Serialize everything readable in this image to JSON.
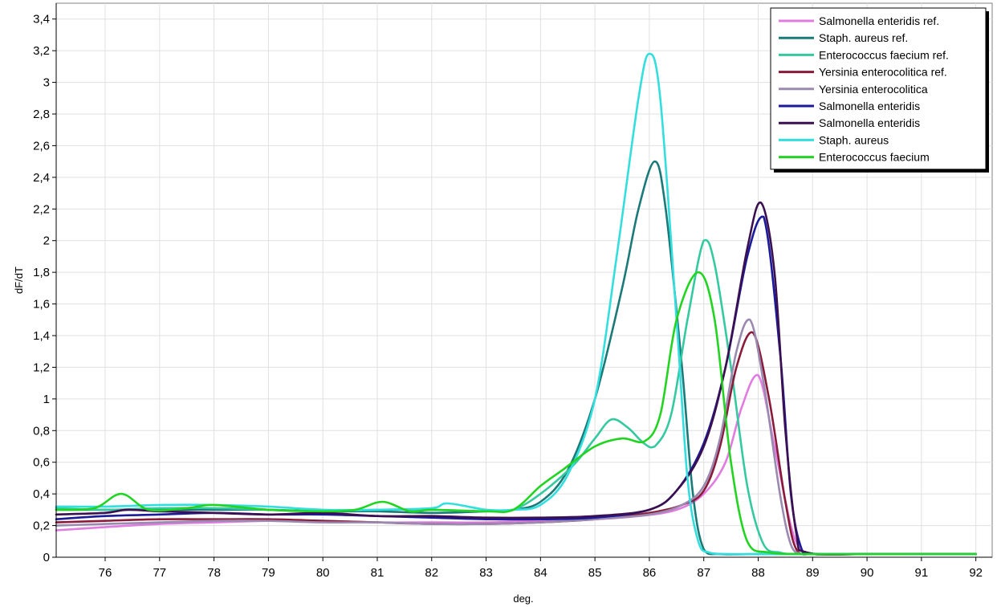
{
  "chart_data": {
    "type": "line",
    "title": "",
    "xlabel": "deg.",
    "ylabel": "dF/dT",
    "xlim": [
      75.1,
      92.3
    ],
    "ylim": [
      0,
      3.5
    ],
    "x_ticks": [
      76,
      77,
      78,
      79,
      80,
      81,
      82,
      83,
      84,
      85,
      86,
      87,
      88,
      89,
      90,
      91,
      92
    ],
    "x_tick_labels": [
      "76",
      "77",
      "78",
      "79",
      "80",
      "81",
      "82",
      "83",
      "84",
      "85",
      "86",
      "87",
      "88",
      "89",
      "90",
      "91",
      "92"
    ],
    "y_ticks": [
      0,
      0.2,
      0.4,
      0.6,
      0.8,
      1,
      1.2,
      1.4,
      1.6,
      1.8,
      2,
      2.2,
      2.4,
      2.6,
      2.8,
      3,
      3.2,
      3.4
    ],
    "y_tick_labels": [
      "0",
      "0,2",
      "0,4",
      "0,6",
      "0,8",
      "1",
      "1,2",
      "1,4",
      "1,6",
      "1,8",
      "2",
      "2,2",
      "2,4",
      "2,6",
      "2,8",
      "3",
      "3,2",
      "3,4"
    ],
    "grid": true,
    "legend_position": "top-right",
    "series": [
      {
        "name": "Salmonella enteridis ref.",
        "color": "#e07be0",
        "x": [
          75.1,
          76,
          77,
          78,
          79,
          80,
          81,
          82,
          83,
          84,
          85,
          85.8,
          86.5,
          87,
          87.4,
          87.7,
          88,
          88.3,
          88.6,
          88.8,
          89,
          90,
          91,
          92
        ],
        "y": [
          0.17,
          0.19,
          0.21,
          0.22,
          0.23,
          0.23,
          0.22,
          0.22,
          0.22,
          0.23,
          0.24,
          0.26,
          0.3,
          0.4,
          0.6,
          0.95,
          1.15,
          0.7,
          0.2,
          0.04,
          0.02,
          0.02,
          0.02,
          0.02
        ]
      },
      {
        "name": "Staph. aureus ref.",
        "color": "#1a7a78",
        "x": [
          75.1,
          76,
          77,
          78,
          79,
          80,
          81,
          82,
          83,
          83.5,
          84,
          84.5,
          85,
          85.5,
          85.8,
          86.1,
          86.3,
          86.6,
          86.8,
          87,
          87.3,
          88,
          89,
          90,
          91,
          92
        ],
        "y": [
          0.3,
          0.3,
          0.3,
          0.3,
          0.3,
          0.29,
          0.29,
          0.28,
          0.29,
          0.3,
          0.35,
          0.55,
          1.0,
          1.7,
          2.2,
          2.5,
          2.2,
          1.2,
          0.4,
          0.05,
          0.02,
          0.02,
          0.02,
          0.02,
          0.02,
          0.02
        ]
      },
      {
        "name": "Enterococcus faecium ref.",
        "color": "#35c9a0",
        "x": [
          75.1,
          76,
          77,
          78,
          79,
          80,
          81,
          82,
          83,
          83.5,
          84,
          84.6,
          85,
          85.3,
          85.6,
          85.9,
          86.1,
          86.4,
          86.7,
          87,
          87.2,
          87.5,
          87.8,
          88.1,
          88.4,
          88.6,
          89,
          90,
          91,
          92
        ],
        "y": [
          0.31,
          0.3,
          0.31,
          0.31,
          0.3,
          0.29,
          0.3,
          0.3,
          0.29,
          0.3,
          0.4,
          0.58,
          0.75,
          0.87,
          0.82,
          0.72,
          0.7,
          0.9,
          1.5,
          2.0,
          1.85,
          1.2,
          0.45,
          0.08,
          0.03,
          0.02,
          0.02,
          0.02,
          0.02,
          0.02
        ]
      },
      {
        "name": "Yersinia enterocolitica ref.",
        "color": "#8a1a3a",
        "x": [
          75.1,
          76,
          77,
          78,
          79,
          80,
          81,
          82,
          83,
          84,
          85,
          86,
          86.6,
          87,
          87.3,
          87.6,
          87.9,
          88.2,
          88.5,
          88.7,
          89,
          90,
          91,
          92
        ],
        "y": [
          0.22,
          0.23,
          0.24,
          0.24,
          0.24,
          0.23,
          0.22,
          0.21,
          0.21,
          0.22,
          0.24,
          0.28,
          0.33,
          0.42,
          0.7,
          1.2,
          1.42,
          1.0,
          0.35,
          0.05,
          0.02,
          0.02,
          0.02,
          0.02
        ]
      },
      {
        "name": "Yersinia enterocolitica",
        "color": "#9a8ab0",
        "x": [
          75.1,
          76,
          77,
          78,
          79,
          80,
          81,
          82,
          83,
          84,
          85,
          86,
          86.6,
          87,
          87.3,
          87.6,
          87.85,
          88.1,
          88.4,
          88.6,
          88.8,
          89,
          90,
          91,
          92
        ],
        "y": [
          0.2,
          0.21,
          0.22,
          0.23,
          0.23,
          0.22,
          0.22,
          0.21,
          0.21,
          0.22,
          0.24,
          0.27,
          0.33,
          0.45,
          0.75,
          1.3,
          1.5,
          1.1,
          0.4,
          0.08,
          0.02,
          0.02,
          0.02,
          0.02,
          0.02
        ]
      },
      {
        "name": "Salmonella enteridis",
        "color": "#1a1a9a",
        "x": [
          75.1,
          76,
          77,
          78,
          79,
          80,
          81,
          82,
          83,
          84,
          85,
          86,
          86.5,
          87,
          87.4,
          87.8,
          88.1,
          88.4,
          88.6,
          88.8,
          89,
          90,
          91,
          92
        ],
        "y": [
          0.24,
          0.26,
          0.27,
          0.28,
          0.27,
          0.27,
          0.26,
          0.25,
          0.24,
          0.24,
          0.25,
          0.3,
          0.42,
          0.72,
          1.2,
          1.9,
          2.15,
          1.3,
          0.4,
          0.05,
          0.02,
          0.02,
          0.02,
          0.02
        ]
      },
      {
        "name": "Salmonella enteridis",
        "color": "#3a1050",
        "x": [
          75.1,
          76,
          76.4,
          77,
          78,
          79,
          80,
          81,
          82,
          83,
          84,
          85,
          86,
          86.5,
          87,
          87.4,
          87.8,
          88.05,
          88.3,
          88.5,
          88.7,
          88.9,
          90,
          91,
          92
        ],
        "y": [
          0.27,
          0.28,
          0.3,
          0.29,
          0.28,
          0.27,
          0.28,
          0.26,
          0.26,
          0.25,
          0.25,
          0.26,
          0.3,
          0.42,
          0.7,
          1.2,
          1.95,
          2.24,
          1.8,
          0.8,
          0.15,
          0.03,
          0.02,
          0.02,
          0.02
        ]
      },
      {
        "name": "Staph. aureus",
        "color": "#33dede",
        "x": [
          75.1,
          76,
          77,
          78,
          79,
          80,
          81,
          82,
          82.3,
          83,
          83.5,
          84,
          84.5,
          85,
          85.4,
          85.8,
          86,
          86.2,
          86.5,
          86.7,
          86.9,
          87.1,
          87.5,
          88,
          90,
          92
        ],
        "y": [
          0.32,
          0.32,
          0.33,
          0.33,
          0.32,
          0.3,
          0.3,
          0.31,
          0.34,
          0.3,
          0.3,
          0.33,
          0.52,
          1.0,
          1.9,
          2.9,
          3.18,
          2.9,
          1.5,
          0.5,
          0.1,
          0.03,
          0.02,
          0.02,
          0.02,
          0.02
        ]
      },
      {
        "name": "Enterococcus faecium",
        "color": "#22d422",
        "x": [
          75.1,
          75.8,
          76.3,
          76.8,
          77.5,
          78,
          79,
          80,
          80.6,
          81.1,
          81.6,
          82,
          83,
          83.5,
          84,
          84.4,
          85,
          85.5,
          85.9,
          86.2,
          86.5,
          86.9,
          87.2,
          87.5,
          87.8,
          88.2,
          89,
          90,
          91,
          92
        ],
        "y": [
          0.3,
          0.31,
          0.4,
          0.3,
          0.31,
          0.33,
          0.3,
          0.29,
          0.3,
          0.35,
          0.29,
          0.3,
          0.29,
          0.3,
          0.45,
          0.55,
          0.7,
          0.75,
          0.73,
          0.9,
          1.5,
          1.8,
          1.5,
          0.6,
          0.1,
          0.03,
          0.02,
          0.02,
          0.02,
          0.02
        ]
      }
    ]
  }
}
